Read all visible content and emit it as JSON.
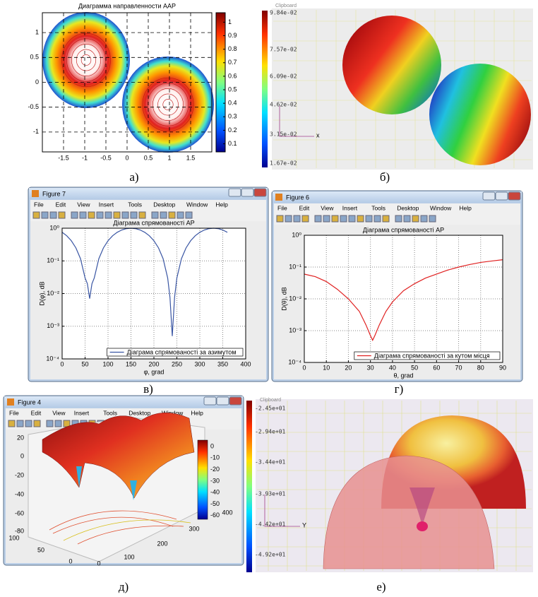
{
  "chart_data": [
    {
      "type": "contour",
      "title": "Диаграмма направленности ААР",
      "xlim": [
        -2,
        2
      ],
      "ylim": [
        -1.4,
        1.4
      ],
      "xticks": [
        -1.5,
        -1,
        -0.5,
        0,
        0.5,
        1,
        1.5
      ],
      "yticks": [
        -1,
        -0.5,
        0,
        0.5,
        1
      ],
      "grid": true,
      "colorbar": {
        "lim": [
          0.04,
          1.07
        ],
        "ticks": [
          0.1,
          0.2,
          0.3,
          0.4,
          0.5,
          0.6,
          0.7,
          0.8,
          0.9,
          1
        ]
      }
    },
    {
      "type": "line",
      "window_title": "Figure 7",
      "title": "Діаграма спрямованості АР",
      "x_label": "φ, grad",
      "y_label": "D(φ), dB",
      "x": [
        0,
        10,
        20,
        30,
        40,
        50,
        55,
        60,
        65,
        70,
        80,
        90,
        100,
        110,
        120,
        130,
        140,
        150,
        160,
        170,
        180,
        190,
        200,
        210,
        220,
        230,
        235,
        240,
        245,
        250,
        260,
        270,
        280,
        290,
        300,
        310,
        320,
        330,
        340,
        350,
        360
      ],
      "series": [
        {
          "name": "Діаграма спрямованості за азимутом",
          "color": "#3955a3",
          "values": [
            0.75,
            0.587,
            0.413,
            0.25,
            0.117,
            0.03,
            0.02,
            0.007,
            0.02,
            0.03,
            0.117,
            0.25,
            0.413,
            0.587,
            0.75,
            0.883,
            0.97,
            1.0,
            0.97,
            0.883,
            0.75,
            0.587,
            0.413,
            0.25,
            0.117,
            0.03,
            0.0076,
            0.0005,
            0.0076,
            0.03,
            0.117,
            0.25,
            0.413,
            0.587,
            0.75,
            0.883,
            0.97,
            1.0,
            0.97,
            0.883,
            0.75
          ]
        }
      ],
      "xlim": [
        0,
        400
      ],
      "xticks": [
        0,
        50,
        100,
        150,
        200,
        250,
        300,
        350,
        400
      ],
      "ylim": [
        0.0001,
        1
      ],
      "yticks": [
        {
          "value": 0.0001,
          "label": "10⁻⁴"
        },
        {
          "value": 0.001,
          "label": "10⁻³"
        },
        {
          "value": 0.01,
          "label": "10⁻²"
        },
        {
          "value": 0.1,
          "label": "10⁻¹"
        },
        {
          "value": 1,
          "label": "10⁰"
        }
      ],
      "log_y": true,
      "grid": true,
      "legend": "lower-right"
    },
    {
      "type": "line",
      "window_title": "Figure 6",
      "title": "Діаграма спрямованості АР",
      "x_label": "θ, grad",
      "y_label": "D(θ), dB",
      "x": [
        0,
        5,
        10,
        15,
        20,
        25,
        28,
        30,
        31,
        32,
        34,
        37,
        40,
        45,
        50,
        55,
        60,
        65,
        70,
        75,
        80,
        85,
        90
      ],
      "series": [
        {
          "name": "Діаграма спрямованості за кутом місця",
          "color": "#e02020",
          "values": [
            0.06,
            0.05,
            0.035,
            0.02,
            0.01,
            0.004,
            0.0015,
            0.0007,
            0.0005,
            0.0007,
            0.0015,
            0.004,
            0.008,
            0.018,
            0.03,
            0.045,
            0.06,
            0.08,
            0.1,
            0.12,
            0.14,
            0.155,
            0.17
          ]
        }
      ],
      "xlim": [
        0,
        90
      ],
      "xticks": [
        0,
        10,
        20,
        30,
        40,
        50,
        60,
        70,
        80,
        90
      ],
      "ylim": [
        0.0001,
        1
      ],
      "yticks": [
        {
          "value": 0.0001,
          "label": "10⁻⁴"
        },
        {
          "value": 0.001,
          "label": "10⁻³"
        },
        {
          "value": 0.01,
          "label": "10⁻²"
        },
        {
          "value": 0.1,
          "label": "10⁻¹"
        },
        {
          "value": 1,
          "label": "10⁰"
        }
      ],
      "log_y": true,
      "grid": true,
      "legend": "lower-right"
    }
  ],
  "menu": [
    "File",
    "Edit",
    "View",
    "Insert",
    "Tools",
    "Desktop",
    "Window",
    "Help"
  ],
  "panels": {
    "b": {
      "colorbar_title": "Clipboard",
      "colorbar_labels": [
        "9.84e-02",
        "7.57e-02",
        "6.09e-02",
        "4.62e-02",
        "3.15e-02",
        "1.67e-02"
      ],
      "axis_label": "x"
    },
    "d": {
      "window_title": "Figure 4",
      "zticks": [
        20,
        0,
        -20,
        -40,
        -60,
        -80
      ],
      "colorbar_ticks": [
        0,
        -10,
        -20,
        -30,
        -40,
        -50,
        -60
      ],
      "y_ticks": [
        100,
        50,
        0
      ],
      "x_ticks": [
        0,
        100,
        200,
        300,
        400
      ]
    },
    "e": {
      "colorbar_title": "Clipboard",
      "colorbar_labels": [
        "-2.45e+01",
        "-2.94e+01",
        "-3.44e+01",
        "-3.93e+01",
        "-4.42e+01",
        "-4.92e+01"
      ],
      "axis_label": "Y"
    }
  },
  "captions": [
    "а)",
    "б)",
    "в)",
    "г)",
    "д)",
    "е)"
  ]
}
